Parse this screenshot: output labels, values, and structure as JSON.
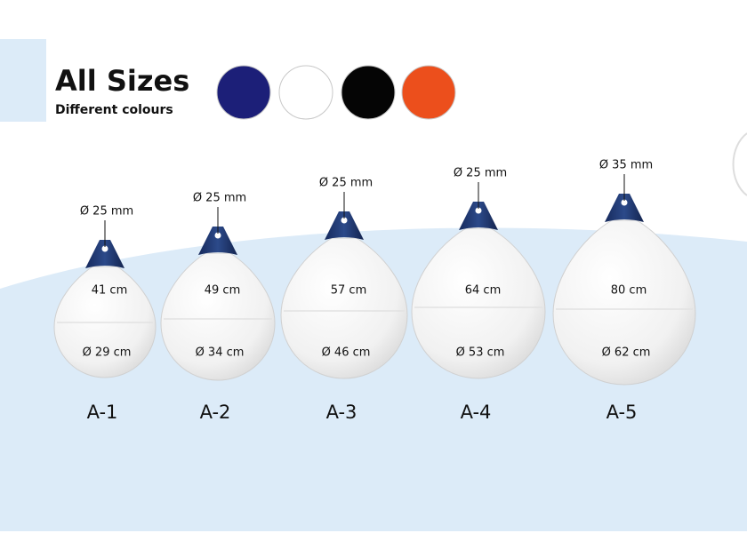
{
  "header": {
    "title": "All Sizes",
    "subtitle": "Different colours"
  },
  "colours": [
    "#1c1f78",
    "#ffffff",
    "#050505",
    "#ec4f1c"
  ],
  "products": [
    {
      "name": "A-1",
      "rope": "Ø 25 mm",
      "height": "41 cm",
      "diameter": "Ø 29 cm"
    },
    {
      "name": "A-2",
      "rope": "Ø 25 mm",
      "height": "49 cm",
      "diameter": "Ø 34 cm"
    },
    {
      "name": "A-3",
      "rope": "Ø 25 mm",
      "height": "57 cm",
      "diameter": "Ø 46 cm"
    },
    {
      "name": "A-4",
      "rope": "Ø 25 mm",
      "height": "64 cm",
      "diameter": "Ø 53 cm"
    },
    {
      "name": "A-5",
      "rope": "Ø 35 mm",
      "height": "80 cm",
      "diameter": "Ø 62 cm"
    }
  ]
}
